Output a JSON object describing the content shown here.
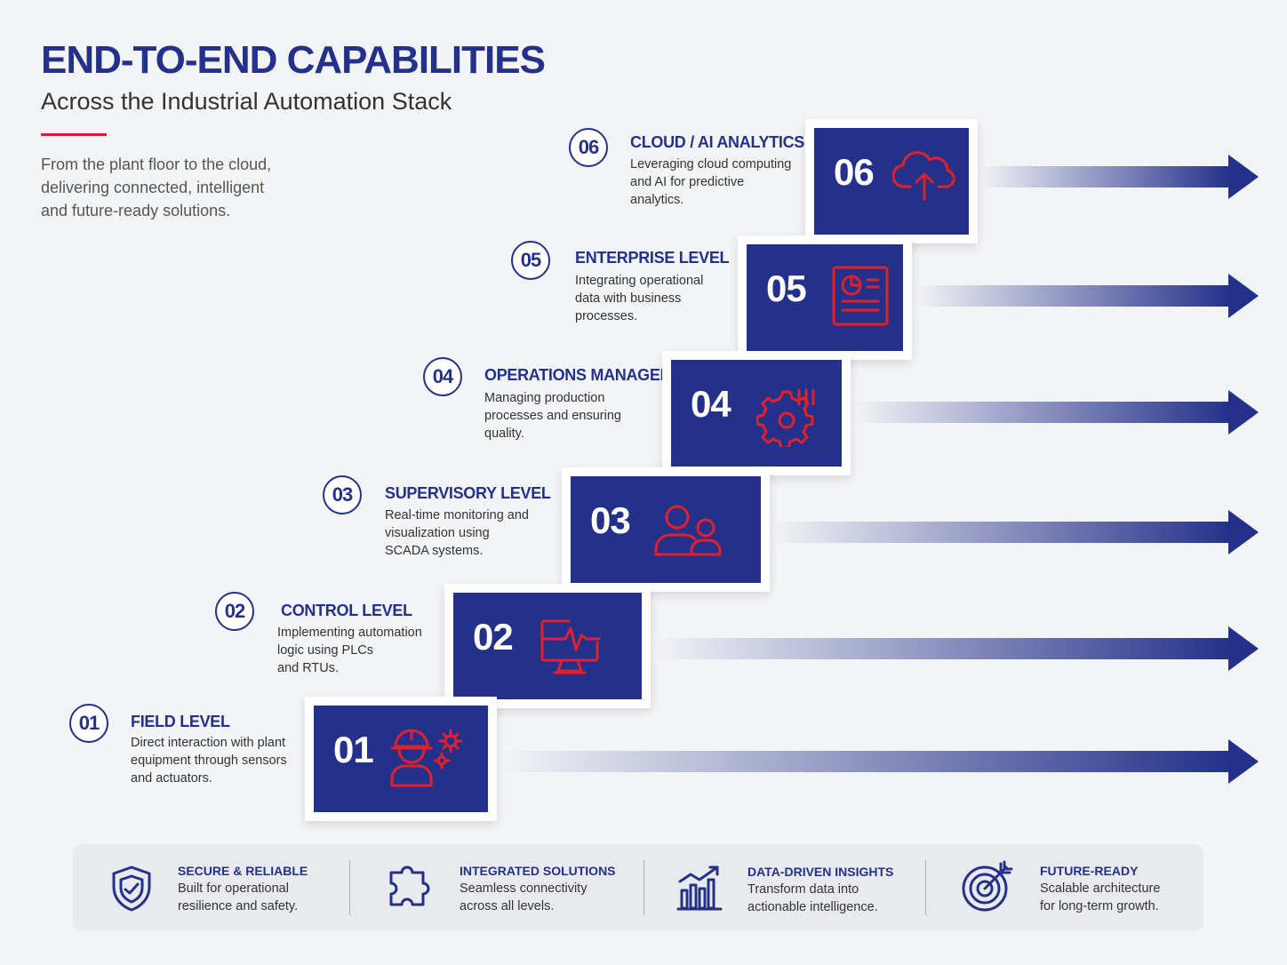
{
  "header": {
    "title": "END-TO-END CAPABILITIES",
    "subtitle": "Across the Industrial Automation Stack",
    "intro_lines": [
      "From the plant floor to the cloud,",
      "delivering connected, intelligent",
      "and future-ready solutions."
    ]
  },
  "steps": [
    {
      "num": "01",
      "title": "FIELD LEVEL",
      "desc_lines": [
        "Direct interaction with plant",
        "equipment through sensors",
        "and actuators."
      ],
      "icon": "worker-gears-icon"
    },
    {
      "num": "02",
      "title": "CONTROL LEVEL",
      "desc_lines": [
        "Implementing automation",
        "logic using PLCs",
        "and RTUs."
      ],
      "icon": "monitor-pulse-icon"
    },
    {
      "num": "03",
      "title": "SUPERVISORY LEVEL",
      "desc_lines": [
        "Real-time monitoring and",
        "visualization using",
        "SCADA systems."
      ],
      "icon": "users-icon"
    },
    {
      "num": "04",
      "title": "OPERATIONS MANAGEMENT",
      "desc_lines": [
        "Managing production",
        "processes and ensuring",
        "quality."
      ],
      "icon": "gear-bars-icon"
    },
    {
      "num": "05",
      "title": "ENTERPRISE LEVEL",
      "desc_lines": [
        "Integrating operational",
        "data with business",
        "processes."
      ],
      "icon": "report-icon"
    },
    {
      "num": "06",
      "title": "CLOUD / AI ANALYTICS",
      "desc_lines": [
        "Leveraging cloud computing",
        "and AI for predictive",
        "analytics."
      ],
      "icon": "cloud-upload-icon"
    }
  ],
  "features": [
    {
      "title": "SECURE & RELIABLE",
      "desc_lines": [
        "Built for operational",
        "resilience and safety."
      ],
      "icon": "shield-check-icon"
    },
    {
      "title": "INTEGRATED SOLUTIONS",
      "desc_lines": [
        "Seamless connectivity",
        "across all levels."
      ],
      "icon": "puzzle-icon"
    },
    {
      "title": "DATA-DRIVEN INSIGHTS",
      "desc_lines": [
        "Transform data into",
        "actionable intelligence."
      ],
      "icon": "bar-chart-trend-icon"
    },
    {
      "title": "FUTURE-READY",
      "desc_lines": [
        "Scalable architecture",
        "for long-term growth."
      ],
      "icon": "target-arrow-icon"
    }
  ],
  "colors": {
    "navy": "#24318a",
    "red": "#e0202a"
  }
}
